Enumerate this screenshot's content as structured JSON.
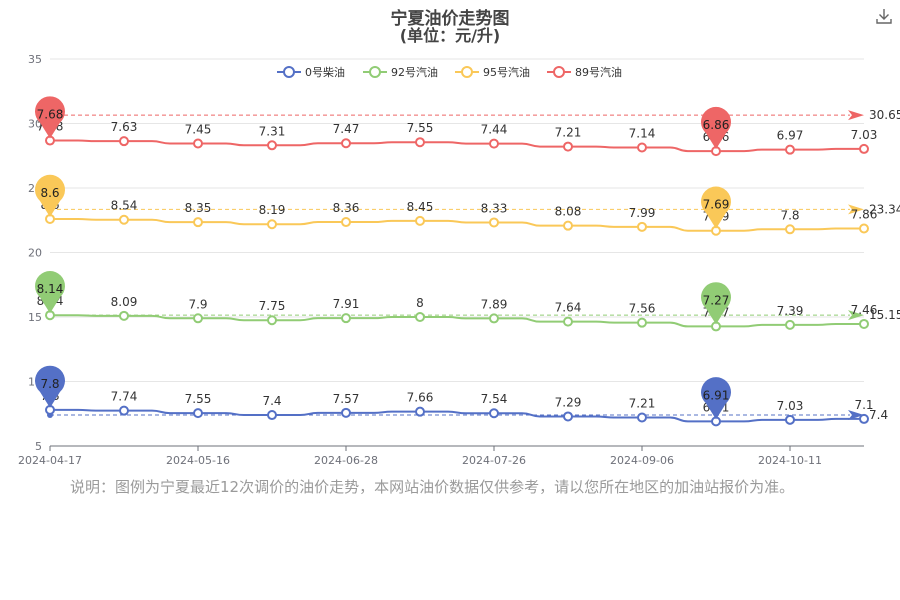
{
  "title": "宁夏油价走势图",
  "subtitle": "(单位：元/升)",
  "note": "说明：图例为宁夏最近12次调价的油价走势，本网站油价数据仅供参考，请以您所在地区的加油站报价为准。",
  "download_icon": "download-icon",
  "chart_data": {
    "type": "line",
    "x_tick_labels": [
      "2024-04-17",
      "2024-05-16",
      "2024-06-28",
      "2024-07-26",
      "2024-09-06",
      "2024-10-11"
    ],
    "ylim": [
      5,
      35
    ],
    "yticks": [
      5,
      10,
      15,
      20,
      25,
      30,
      35
    ],
    "grid": true,
    "legend": "top-center",
    "series": [
      {
        "name": "0号柴油",
        "color": "#5470c6",
        "offset": 0,
        "values": [
          7.8,
          7.74,
          7.55,
          7.4,
          7.57,
          7.66,
          7.54,
          7.29,
          7.21,
          6.91,
          7.03,
          7.1
        ],
        "max_label": "7.8",
        "min_label": "6.91",
        "average": 7.4,
        "average_label": "7.4"
      },
      {
        "name": "92号汽油",
        "color": "#91cc75",
        "offset": 7,
        "values": [
          8.14,
          8.09,
          7.9,
          7.75,
          7.91,
          8,
          7.89,
          7.64,
          7.56,
          7.27,
          7.39,
          7.46
        ],
        "max_label": "8.14",
        "min_label": "7.27",
        "average": 15.15,
        "average_label": "15.15"
      },
      {
        "name": "95号汽油",
        "color": "#fac858",
        "offset": 14,
        "values": [
          8.6,
          8.54,
          8.35,
          8.19,
          8.36,
          8.45,
          8.33,
          8.08,
          7.99,
          7.69,
          7.8,
          7.86
        ],
        "max_label": "8.6",
        "min_label": "7.69",
        "average": 23.34,
        "average_label": "23.34"
      },
      {
        "name": "89号汽油",
        "color": "#ee6666",
        "offset": 21,
        "values": [
          7.68,
          7.63,
          7.45,
          7.31,
          7.47,
          7.55,
          7.44,
          7.21,
          7.14,
          6.86,
          6.97,
          7.03
        ],
        "max_label": "7.68",
        "min_label": "6.86",
        "average": 30.65,
        "average_label": "30.65"
      }
    ]
  }
}
